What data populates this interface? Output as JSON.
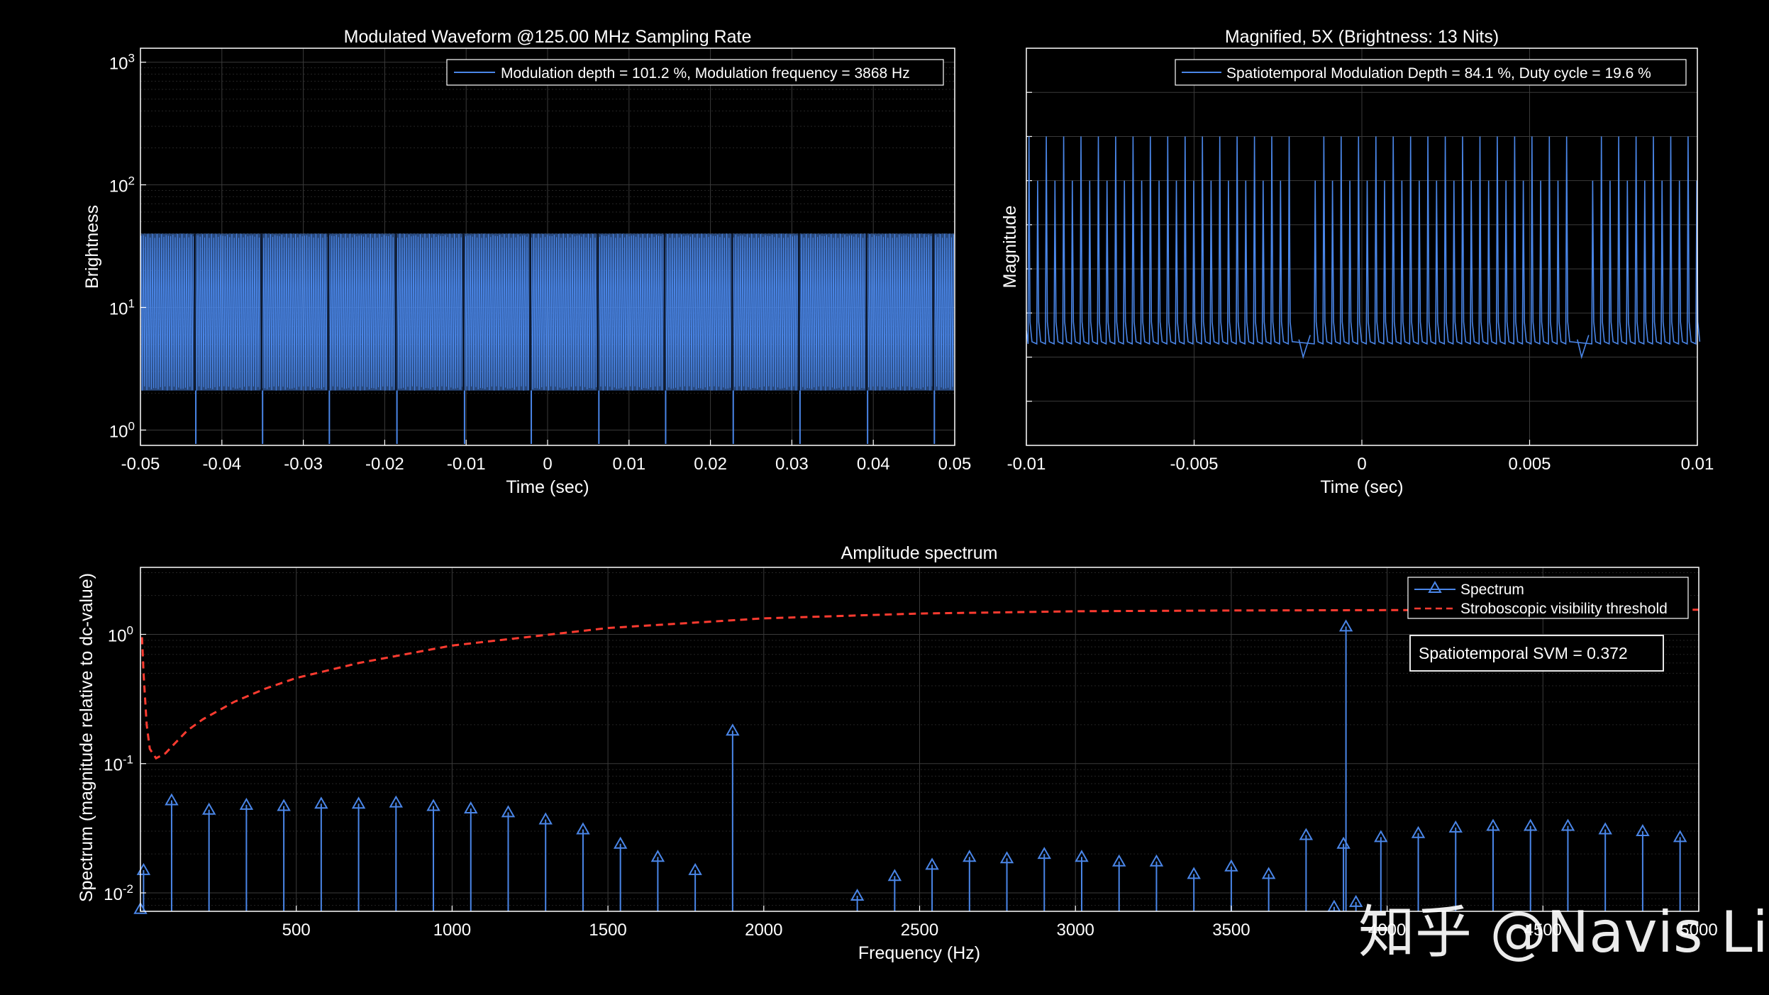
{
  "colors": {
    "background": "#000000",
    "axes": "#ffffff",
    "grid": "#3a3a3a",
    "minorGrid": "#242424",
    "signal": "#4a86e8",
    "threshold": "#ff3b30"
  },
  "chart_data": [
    {
      "id": "waveform",
      "type": "line",
      "title": "Modulated Waveform @125.00 MHz Sampling Rate",
      "xlabel": "Time (sec)",
      "ylabel": "Brightness",
      "xlim": [
        -0.05,
        0.05
      ],
      "ylim": [
        0.75,
        1300
      ],
      "yscale": "log",
      "grid": true,
      "xticks": [
        "-0.05",
        "-0.04",
        "-0.03",
        "-0.02",
        "-0.01",
        "0",
        "0.01",
        "0.02",
        "0.03",
        "0.04",
        "0.05"
      ],
      "xtick_values": [
        -0.05,
        -0.04,
        -0.03,
        -0.02,
        -0.01,
        0,
        0.01,
        0.02,
        0.03,
        0.04,
        0.05
      ],
      "ytick_values": [
        1,
        10,
        100,
        1000
      ],
      "yticks": [
        {
          "base": "10",
          "exp": "0"
        },
        {
          "base": "10",
          "exp": "1"
        },
        {
          "base": "10",
          "exp": "2"
        },
        {
          "base": "10",
          "exp": "3"
        }
      ],
      "legend": {
        "position": "top-right",
        "entries": [
          "Modulation depth = 101.2 %, Modulation frequency = 3868 Hz"
        ]
      },
      "series": [
        {
          "name": "Modulation depth = 101.2 %, Modulation frequency = 3868 Hz",
          "envelope_max": 40,
          "envelope_min": 2.1,
          "dip_times": [
            -0.0432,
            -0.035,
            -0.0268,
            -0.0185,
            -0.0102,
            -0.002,
            0.0063,
            0.0145,
            0.0228,
            0.031,
            0.0393,
            0.0475
          ],
          "dip_value": 0.75
        }
      ]
    },
    {
      "id": "magnified",
      "type": "line",
      "title": "Magnified, 5X (Brightness: 13 Nits)",
      "xlabel": "Time (sec)",
      "ylabel": "Magnitude",
      "xlim": [
        -0.01,
        0.01
      ],
      "ylim": [
        0,
        9
      ],
      "grid": true,
      "xticks": [
        "-0.01",
        "-0.005",
        "0",
        "0.005",
        "0.01"
      ],
      "xtick_values": [
        -0.01,
        -0.005,
        0,
        0.005,
        0.01
      ],
      "legend": {
        "position": "top-right",
        "entries": [
          "Spatiotemporal Modulation Depth = 84.1 %, Duty cycle = 19.6 %"
        ]
      },
      "series": [
        {
          "name": "Spatiotemporal Modulation Depth = 84.1 %, Duty cycle = 19.6 %",
          "pulse_period": 0.0002585,
          "baseline": 2.3,
          "peak_high": 7.0,
          "peak_low": 6.0,
          "gap_times": [
            -0.00175,
            0.00655
          ]
        }
      ]
    },
    {
      "id": "spectrum",
      "type": "scatter",
      "title": "Amplitude spectrum",
      "xlabel": "Frequency (Hz)",
      "ylabel": "Spectrum (magnitude relative to dc-value)",
      "xlim": [
        0,
        5000
      ],
      "ylim": [
        0.0072,
        3.3
      ],
      "yscale": "log",
      "grid": true,
      "xticks": [
        "500",
        "1000",
        "1500",
        "2000",
        "2500",
        "3000",
        "3500",
        "4000",
        "4500",
        "5000"
      ],
      "xtick_values": [
        500,
        1000,
        1500,
        2000,
        2500,
        3000,
        3500,
        4000,
        4500,
        5000
      ],
      "ytick_values": [
        0.01,
        0.1,
        1
      ],
      "yticks": [
        {
          "base": "10",
          "exp": "-2"
        },
        {
          "base": "10",
          "exp": "-1"
        },
        {
          "base": "10",
          "exp": "0"
        }
      ],
      "legend": {
        "position": "top-right",
        "entries": [
          "Spectrum",
          "Stroboscopic visibility threshold"
        ]
      },
      "annotation": "Spatiotemporal SVM = 0.372",
      "spectrum": {
        "name": "Spectrum",
        "x": [
          0,
          10,
          100,
          220,
          340,
          460,
          580,
          700,
          820,
          940,
          1060,
          1180,
          1300,
          1420,
          1540,
          1660,
          1780,
          1900,
          2300,
          2420,
          2540,
          2660,
          2780,
          2900,
          3020,
          3140,
          3260,
          3380,
          3500,
          3620,
          3740,
          3830,
          3860,
          3868,
          3900,
          3980,
          4100,
          4220,
          4340,
          4460,
          4580,
          4700,
          4820,
          4940
        ],
        "y": [
          0.0075,
          0.015,
          0.052,
          0.044,
          0.048,
          0.047,
          0.049,
          0.049,
          0.05,
          0.047,
          0.045,
          0.042,
          0.037,
          0.031,
          0.024,
          0.019,
          0.015,
          0.18,
          0.0095,
          0.0135,
          0.0165,
          0.019,
          0.0185,
          0.02,
          0.019,
          0.0175,
          0.0175,
          0.014,
          0.016,
          0.014,
          0.028,
          0.0078,
          0.024,
          1.15,
          0.0085,
          0.027,
          0.029,
          0.032,
          0.033,
          0.033,
          0.033,
          0.031,
          0.03,
          0.027
        ]
      },
      "threshold": {
        "name": "Stroboscopic visibility threshold",
        "x": [
          5,
          10,
          20,
          30,
          50,
          80,
          100,
          150,
          200,
          300,
          400,
          500,
          700,
          1000,
          1500,
          2000,
          2500,
          3000,
          3500,
          4000,
          4500,
          5000
        ],
        "y": [
          0.95,
          0.5,
          0.2,
          0.13,
          0.11,
          0.12,
          0.135,
          0.18,
          0.22,
          0.3,
          0.38,
          0.46,
          0.6,
          0.82,
          1.12,
          1.33,
          1.45,
          1.51,
          1.53,
          1.54,
          1.55,
          1.55
        ]
      }
    }
  ],
  "watermark": "知乎 @Navis Li"
}
